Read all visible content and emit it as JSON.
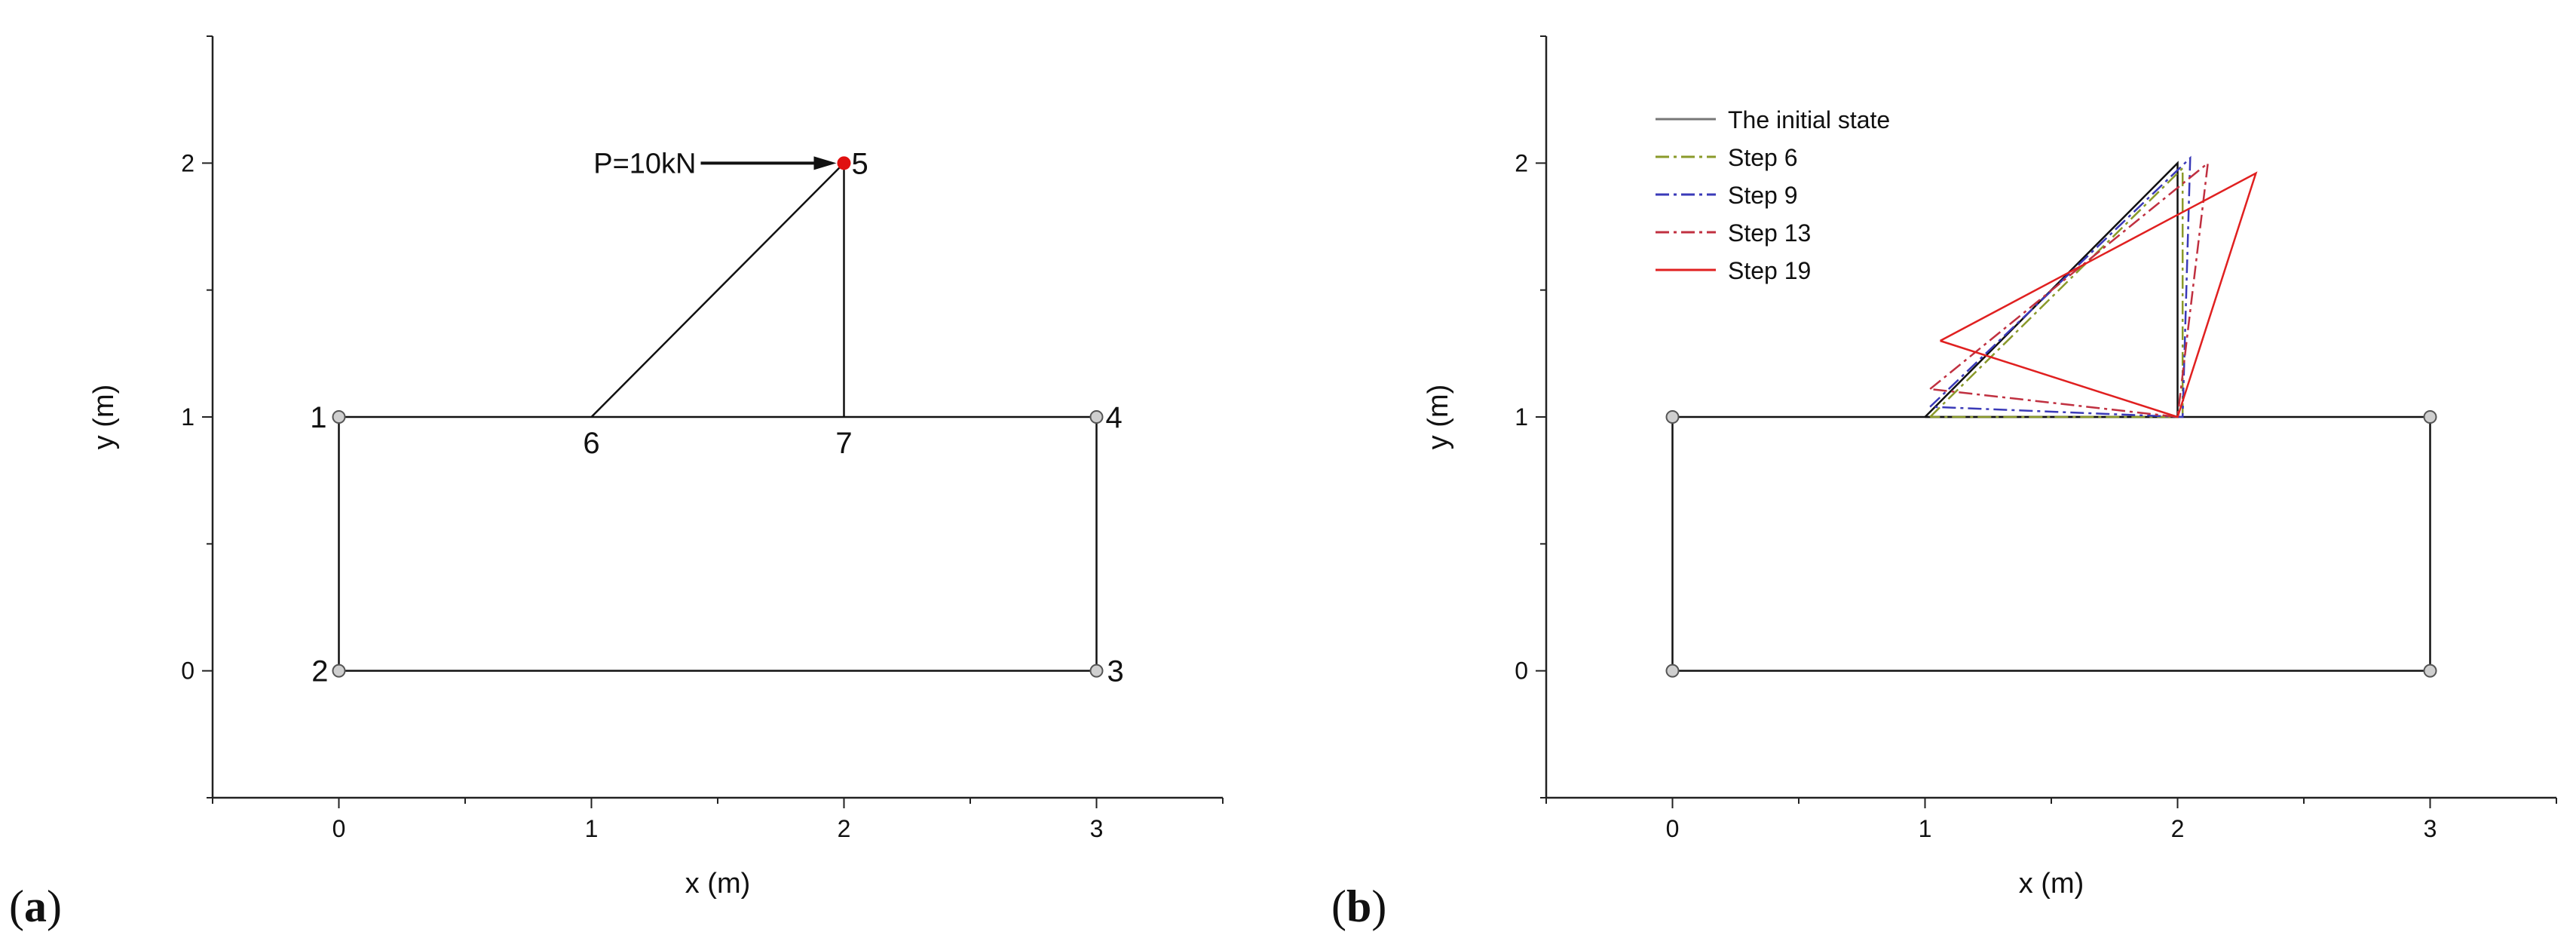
{
  "panels": [
    {
      "id": "a",
      "label": "a",
      "xlabel": "x (m)",
      "ylabel": "y (m)",
      "xlim": [
        -0.5,
        3.5
      ],
      "ylim": [
        -0.5,
        2.5
      ],
      "xticks": [
        "0",
        "1",
        "2",
        "3"
      ],
      "yticks": [
        "0",
        "1",
        "2"
      ],
      "structure": {
        "rect": [
          [
            0,
            0
          ],
          [
            3,
            0
          ],
          [
            3,
            1
          ],
          [
            0,
            1
          ]
        ],
        "members": [
          [
            [
              1,
              1
            ],
            [
              2,
              2
            ]
          ],
          [
            [
              2,
              1
            ],
            [
              2,
              2
            ]
          ]
        ],
        "supports": [
          [
            0,
            1
          ],
          [
            0,
            0
          ],
          [
            3,
            0
          ],
          [
            3,
            1
          ]
        ],
        "node_labels": [
          {
            "text": "1",
            "x": 0,
            "y": 1
          },
          {
            "text": "2",
            "x": 0,
            "y": 0
          },
          {
            "text": "3",
            "x": 3,
            "y": 0
          },
          {
            "text": "4",
            "x": 3,
            "y": 1
          },
          {
            "text": "5",
            "x": 2,
            "y": 2
          },
          {
            "text": "6",
            "x": 1,
            "y": 1
          },
          {
            "text": "7",
            "x": 2,
            "y": 1
          }
        ],
        "load_label": "P=10kN",
        "load_node": [
          2,
          2
        ]
      }
    },
    {
      "id": "b",
      "label": "b",
      "xlabel": "x (m)",
      "ylabel": "y (m)",
      "xlim": [
        -0.5,
        3.5
      ],
      "ylim": [
        -0.5,
        2.5
      ],
      "xticks": [
        "0",
        "1",
        "2",
        "3"
      ],
      "yticks": [
        "0",
        "1",
        "2"
      ],
      "rect": [
        [
          0,
          0
        ],
        [
          3,
          0
        ],
        [
          3,
          1
        ],
        [
          0,
          1
        ]
      ],
      "supports": [
        [
          0,
          1
        ],
        [
          0,
          0
        ],
        [
          3,
          0
        ],
        [
          3,
          1
        ]
      ],
      "legend": [
        {
          "name": "The initial state",
          "color": "#777777",
          "dash": "solid"
        },
        {
          "name": "Step 6",
          "color": "#8a9a2a",
          "dash": "dashdot"
        },
        {
          "name": "Step 9",
          "color": "#3a3ab8",
          "dash": "dashdot"
        },
        {
          "name": "Step 13",
          "color": "#c03040",
          "dash": "dashdot"
        },
        {
          "name": "Step 19",
          "color": "#e02020",
          "dash": "solid"
        }
      ],
      "states": [
        {
          "color": "#111111",
          "dash": "solid",
          "points": [
            [
              1,
              1
            ],
            [
              2,
              2
            ],
            [
              2,
              1
            ]
          ]
        },
        {
          "color": "#8a9a2a",
          "dash": "dashdot",
          "points": [
            [
              1.02,
              1.0
            ],
            [
              2.02,
              1.98
            ],
            [
              2.02,
              1.0
            ]
          ]
        },
        {
          "color": "#3a3ab8",
          "dash": "dashdot",
          "points": [
            [
              1.02,
              1.04
            ],
            [
              2.05,
              2.02
            ],
            [
              2.02,
              1.0
            ]
          ]
        },
        {
          "color": "#c03040",
          "dash": "dashdot",
          "points": [
            [
              1.02,
              1.11
            ],
            [
              2.12,
              2.0
            ],
            [
              2.0,
              1.0
            ]
          ]
        },
        {
          "color": "#e02020",
          "dash": "solid",
          "points": [
            [
              1.06,
              1.3
            ],
            [
              2.31,
              1.96
            ],
            [
              2.0,
              1.0
            ]
          ]
        }
      ]
    }
  ]
}
